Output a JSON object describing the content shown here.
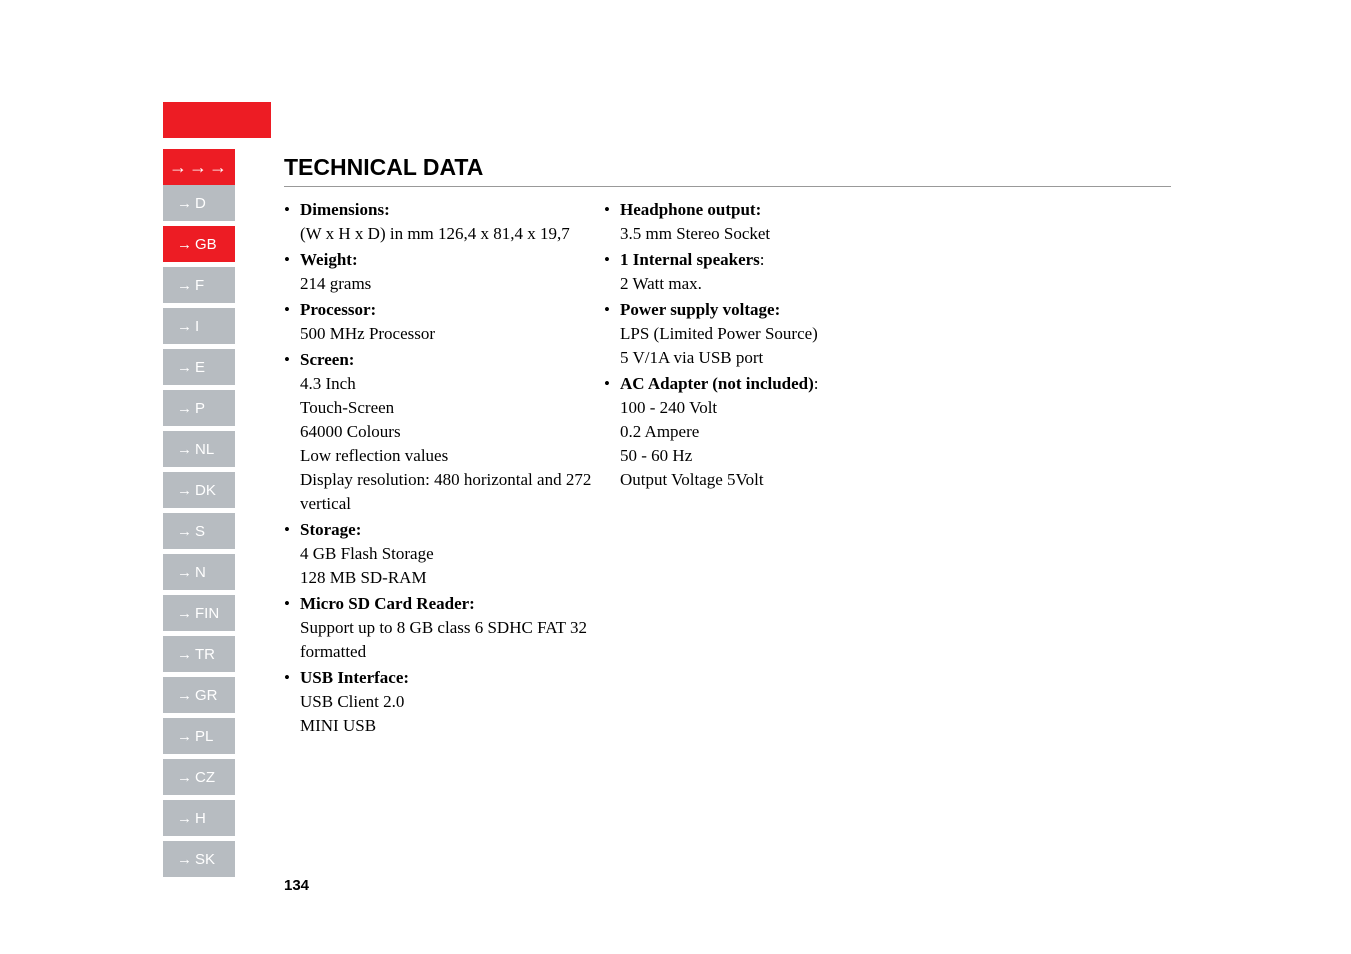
{
  "colors": {
    "red": "#ed1c24",
    "grey": "#b7bcc1",
    "hr": "#999999"
  },
  "header": {
    "arrows": "→→→",
    "title": "TECHNICAL DATA"
  },
  "nav": {
    "items": [
      {
        "code": "D",
        "active": false
      },
      {
        "code": "GB",
        "active": true
      },
      {
        "code": "F",
        "active": false
      },
      {
        "code": "I",
        "active": false
      },
      {
        "code": "E",
        "active": false
      },
      {
        "code": "P",
        "active": false
      },
      {
        "code": "NL",
        "active": false
      },
      {
        "code": "DK",
        "active": false
      },
      {
        "code": "S",
        "active": false
      },
      {
        "code": "N",
        "active": false
      },
      {
        "code": "FIN",
        "active": false
      },
      {
        "code": "TR",
        "active": false
      },
      {
        "code": "GR",
        "active": false
      },
      {
        "code": "PL",
        "active": false
      },
      {
        "code": "CZ",
        "active": false
      },
      {
        "code": "H",
        "active": false
      },
      {
        "code": "SK",
        "active": false
      }
    ]
  },
  "specs_left": [
    {
      "label": "Dimensions:",
      "lines": [
        "(W x H x D) in mm 126,4 x 81,4 x 19,7"
      ]
    },
    {
      "label": "Weight:",
      "lines": [
        "214 grams"
      ]
    },
    {
      "label": "Processor:",
      "lines": [
        "500 MHz Processor"
      ]
    },
    {
      "label": "Screen:",
      "lines": [
        "4.3 Inch",
        "Touch-Screen",
        "64000 Colours",
        "Low reflection values",
        "Display resolution: 480 horizontal and 272 vertical"
      ]
    },
    {
      "label": "Storage:",
      "lines": [
        "4 GB Flash Storage",
        "128 MB SD-RAM"
      ]
    },
    {
      "label": "Micro SD Card Reader:",
      "lines": [
        "Support up to 8 GB class 6 SDHC FAT 32 formatted"
      ]
    },
    {
      "label": "USB Interface:",
      "lines": [
        "USB Client 2.0",
        "MINI USB"
      ]
    }
  ],
  "specs_right": [
    {
      "label": "Headphone output:",
      "lines": [
        "3.5 mm Stereo Socket"
      ]
    },
    {
      "label": "1 Internal speakers",
      "label_suffix": ":",
      "lines": [
        "2 Watt max."
      ]
    },
    {
      "label": "Power supply voltage:",
      "lines": [
        "LPS (Limited Power Source)",
        "5 V/1A via USB port"
      ]
    },
    {
      "label": "AC Adapter (not included)",
      "label_suffix": ":",
      "lines": [
        "100 - 240 Volt",
        "0.2 Ampere",
        "50 - 60 Hz",
        "Output Voltage 5Volt"
      ]
    }
  ],
  "page_number": "134"
}
